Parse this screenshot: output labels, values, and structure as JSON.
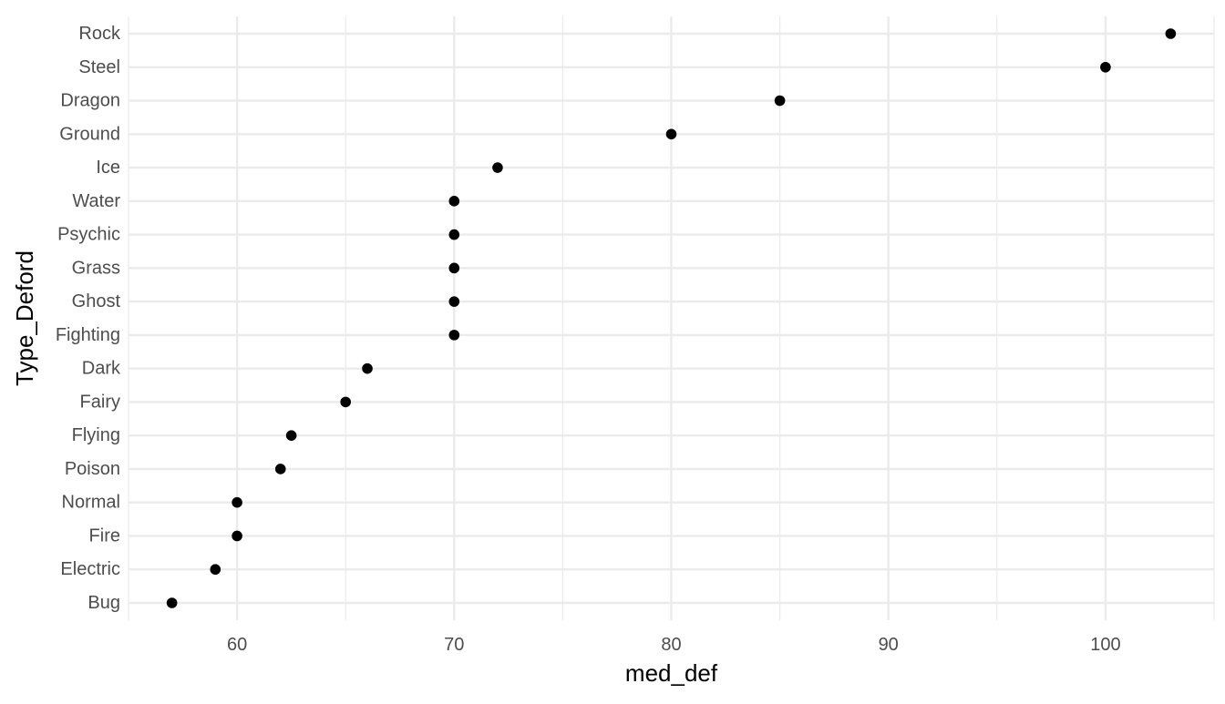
{
  "chart_data": {
    "type": "scatter",
    "title": "",
    "xlabel": "med_def",
    "ylabel": "Type_Deford",
    "xlim": [
      55,
      105
    ],
    "x_ticks": [
      60,
      70,
      80,
      90,
      100
    ],
    "x_tick_labels": [
      "60",
      "70",
      "80",
      "90",
      "100"
    ],
    "grid": true,
    "theme": "minimal",
    "point_color": "#000000",
    "gridline_color": "#ebebeb",
    "categories": [
      "Rock",
      "Steel",
      "Dragon",
      "Ground",
      "Ice",
      "Water",
      "Psychic",
      "Grass",
      "Ghost",
      "Fighting",
      "Dark",
      "Fairy",
      "Flying",
      "Poison",
      "Normal",
      "Fire",
      "Electric",
      "Bug"
    ],
    "values": [
      103,
      100,
      85,
      80,
      72,
      70,
      70,
      70,
      70,
      70,
      66,
      65,
      62.5,
      62,
      60,
      60,
      59,
      57
    ]
  }
}
